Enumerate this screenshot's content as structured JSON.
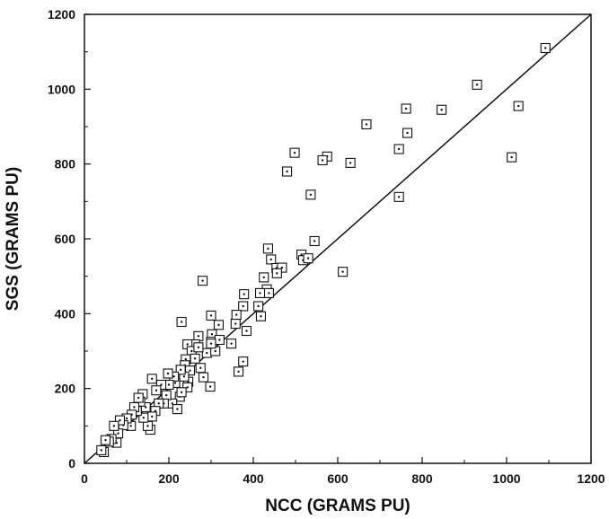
{
  "chart_data": {
    "type": "scatter",
    "title": "",
    "xlabel": "NCC (GRAMS PU)",
    "ylabel": "SGS (GRAMS PU)",
    "xlim": [
      0,
      1200
    ],
    "ylim": [
      0,
      1200
    ],
    "xticks": [
      0,
      200,
      400,
      600,
      800,
      1000,
      1200
    ],
    "yticks": [
      0,
      200,
      400,
      600,
      800,
      1000,
      1200
    ],
    "grid": false,
    "legend": "none",
    "marker": "square-with-center-dot",
    "reference_line": {
      "type": "y=x",
      "from": [
        0,
        0
      ],
      "to": [
        1200,
        1200
      ]
    },
    "colors": {
      "ink": "#111111",
      "background": "#ffffff"
    },
    "series": [
      {
        "points": [
          [
            1092,
            1110
          ],
          [
            930,
            1012
          ],
          [
            1028,
            955
          ],
          [
            1012,
            818
          ],
          [
            846,
            945
          ],
          [
            762,
            948
          ],
          [
            765,
            883
          ],
          [
            745,
            840
          ],
          [
            745,
            712
          ],
          [
            668,
            906
          ],
          [
            630,
            803
          ],
          [
            575,
            820
          ],
          [
            564,
            810
          ],
          [
            498,
            830
          ],
          [
            480,
            780
          ],
          [
            536,
            718
          ],
          [
            612,
            512
          ],
          [
            545,
            594
          ],
          [
            514,
            558
          ],
          [
            518,
            543
          ],
          [
            530,
            548
          ],
          [
            435,
            574
          ],
          [
            442,
            545
          ],
          [
            455,
            522
          ],
          [
            468,
            523
          ],
          [
            456,
            508
          ],
          [
            425,
            497
          ],
          [
            432,
            465
          ],
          [
            437,
            455
          ],
          [
            416,
            455
          ],
          [
            412,
            420
          ],
          [
            418,
            393
          ],
          [
            378,
            452
          ],
          [
            376,
            420
          ],
          [
            384,
            354
          ],
          [
            360,
            397
          ],
          [
            358,
            373
          ],
          [
            348,
            320
          ],
          [
            318,
            370
          ],
          [
            300,
            395
          ],
          [
            302,
            345
          ],
          [
            280,
            488
          ],
          [
            230,
            378
          ],
          [
            270,
            340
          ],
          [
            262,
            318
          ],
          [
            244,
            318
          ],
          [
            254,
            300
          ],
          [
            262,
            280
          ],
          [
            240,
            278
          ],
          [
            238,
            262
          ],
          [
            250,
            248
          ],
          [
            246,
            218
          ],
          [
            244,
            203
          ],
          [
            236,
            232
          ],
          [
            226,
            178
          ],
          [
            228,
            250
          ],
          [
            215,
            215
          ],
          [
            212,
            232
          ],
          [
            208,
            160
          ],
          [
            198,
            240
          ],
          [
            200,
            210
          ],
          [
            194,
            182
          ],
          [
            188,
            160
          ],
          [
            182,
            210
          ],
          [
            176,
            160
          ],
          [
            170,
            195
          ],
          [
            168,
            140
          ],
          [
            160,
            226
          ],
          [
            160,
            125
          ],
          [
            156,
            90
          ],
          [
            150,
            100
          ],
          [
            145,
            150
          ],
          [
            138,
            185
          ],
          [
            140,
            122
          ],
          [
            132,
            165
          ],
          [
            128,
            175
          ],
          [
            124,
            140
          ],
          [
            118,
            150
          ],
          [
            112,
            130
          ],
          [
            110,
            100
          ],
          [
            100,
            120
          ],
          [
            92,
            102
          ],
          [
            84,
            115
          ],
          [
            80,
            80
          ],
          [
            76,
            55
          ],
          [
            70,
            100
          ],
          [
            64,
            65
          ],
          [
            58,
            58
          ],
          [
            50,
            62
          ],
          [
            46,
            30
          ],
          [
            40,
            35
          ],
          [
            290,
            295
          ],
          [
            300,
            325
          ],
          [
            310,
            300
          ],
          [
            320,
            330
          ],
          [
            275,
            255
          ],
          [
            270,
            310
          ],
          [
            282,
            230
          ],
          [
            365,
            245
          ],
          [
            376,
            272
          ],
          [
            298,
            205
          ],
          [
            220,
            145
          ],
          [
            300,
            320
          ],
          [
            230,
            190
          ]
        ]
      }
    ]
  }
}
